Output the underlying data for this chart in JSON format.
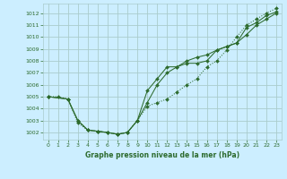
{
  "background_color": "#cceeff",
  "grid_color": "#aacccc",
  "line_color": "#2d6b2d",
  "title": "Graphe pression niveau de la mer (hPa)",
  "xlim": [
    -0.5,
    23.5
  ],
  "ylim": [
    1001.4,
    1012.8
  ],
  "yticks": [
    1002,
    1003,
    1004,
    1005,
    1006,
    1007,
    1008,
    1009,
    1010,
    1011,
    1012
  ],
  "xticks": [
    0,
    1,
    2,
    3,
    4,
    5,
    6,
    7,
    8,
    9,
    10,
    11,
    12,
    13,
    14,
    15,
    16,
    17,
    18,
    19,
    20,
    21,
    22,
    23
  ],
  "series1_x": [
    0,
    1,
    2,
    3,
    4,
    5,
    6,
    7,
    8,
    9,
    10,
    11,
    12,
    13,
    14,
    15,
    16,
    17,
    18,
    19,
    20,
    21,
    22,
    23
  ],
  "series1_y": [
    1005.0,
    1005.0,
    1004.8,
    1002.8,
    1002.2,
    1002.1,
    1002.0,
    1001.85,
    1002.0,
    1003.0,
    1004.2,
    1004.5,
    1004.8,
    1005.4,
    1006.0,
    1006.5,
    1007.5,
    1008.0,
    1008.9,
    1010.0,
    1011.0,
    1011.5,
    1012.0,
    1012.4
  ],
  "series2_x": [
    0,
    2,
    3,
    4,
    5,
    6,
    7,
    8,
    9,
    10,
    11,
    12,
    13,
    14,
    15,
    16,
    17,
    18,
    19,
    20,
    21,
    22,
    23
  ],
  "series2_y": [
    1005.0,
    1004.8,
    1003.0,
    1002.2,
    1002.1,
    1002.0,
    1001.85,
    1002.0,
    1003.0,
    1005.5,
    1006.5,
    1007.5,
    1007.5,
    1007.8,
    1007.8,
    1008.0,
    1008.9,
    1009.2,
    1009.5,
    1010.8,
    1011.2,
    1011.8,
    1012.1
  ],
  "series3_x": [
    0,
    2,
    3,
    4,
    5,
    6,
    7,
    8,
    9,
    10,
    11,
    12,
    13,
    14,
    15,
    16,
    17,
    18,
    19,
    20,
    21,
    22,
    23
  ],
  "series3_y": [
    1005.0,
    1004.8,
    1003.0,
    1002.2,
    1002.1,
    1002.0,
    1001.85,
    1002.0,
    1003.0,
    1004.5,
    1006.0,
    1007.0,
    1007.5,
    1008.0,
    1008.3,
    1008.5,
    1008.9,
    1009.2,
    1009.5,
    1010.2,
    1011.0,
    1011.5,
    1012.0
  ]
}
